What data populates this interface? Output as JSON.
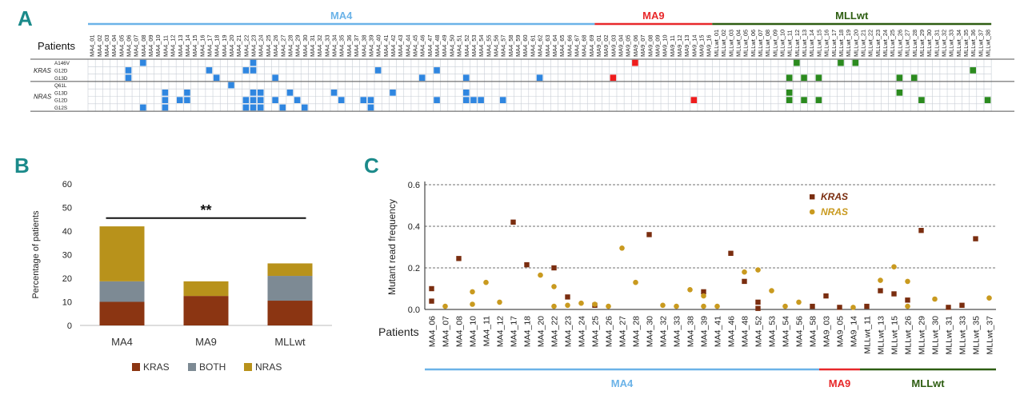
{
  "colors": {
    "ma4": "#6bb3e8",
    "ma9": "#e8282a",
    "mllwt": "#2e5e12",
    "kras_bar": "#8b3512",
    "both_bar": "#7d8a94",
    "nras_bar": "#b8921b",
    "kras_dot": "#7a2d0f",
    "nras_dot": "#c99a1f",
    "heat_ma4": "#2f86e0",
    "heat_ma9": "#ee1c1c",
    "heat_mll": "#2b8a1e",
    "grid": "#c8ced6"
  },
  "panel_labels": [
    "A",
    "B",
    "C"
  ],
  "panel_a": {
    "groups": [
      {
        "name": "MA4",
        "start": 0,
        "end": 69
      },
      {
        "name": "MA9",
        "start": 69,
        "end": 85
      },
      {
        "name": "MLLwt",
        "start": 85,
        "end": 123
      }
    ],
    "patients_label": "Patients",
    "gene_labels": [
      {
        "name": "KRAS",
        "rows": [
          0,
          2
        ]
      },
      {
        "name": "NRAS",
        "rows": [
          3,
          6
        ]
      }
    ],
    "row_labels": [
      "A146V",
      "G12D",
      "G13D",
      "Q61L",
      "G13D",
      "G12D",
      "G12S"
    ],
    "patients": [
      "MA4_01",
      "MA4_02",
      "MA4_03",
      "MA4_04",
      "MA4_05",
      "MA4_06",
      "MA4_07",
      "MA4_08",
      "MA4_09",
      "MA4_10",
      "MA4_11",
      "MA4_12",
      "MA4_13",
      "MA4_14",
      "MA4_15",
      "MA4_16",
      "MA4_17",
      "MA4_18",
      "MA4_19",
      "MA4_20",
      "MA4_21",
      "MA4_22",
      "MA4_23",
      "MA4_24",
      "MA4_25",
      "MA4_26",
      "MA4_27",
      "MA4_28",
      "MA4_29",
      "MA4_30",
      "MA4_31",
      "MA4_32",
      "MA4_33",
      "MA4_34",
      "MA4_35",
      "MA4_36",
      "MA4_37",
      "MA4_38",
      "MA4_39",
      "MA4_40",
      "MA4_41",
      "MA4_42",
      "MA4_43",
      "MA4_44",
      "MA4_45",
      "MA4_46",
      "MA4_47",
      "MA4_48",
      "MA4_49",
      "MA4_50",
      "MA4_51",
      "MA4_52",
      "MA4_53",
      "MA4_54",
      "MA4_55",
      "MA4_56",
      "MA4_57",
      "MA4_58",
      "MA4_59",
      "MA4_60",
      "MA4_61",
      "MA4_62",
      "MA4_63",
      "MA4_64",
      "MA4_65",
      "MA4_66",
      "MA4_67",
      "MA4_68",
      "MA4_69",
      "MA9_01",
      "MA9_02",
      "MA9_03",
      "MA9_04",
      "MA9_05",
      "MA9_06",
      "MA9_07",
      "MA9_08",
      "MA9_09",
      "MA9_10",
      "MA9_11",
      "MA9_12",
      "MA9_13",
      "MA9_14",
      "MA9_15",
      "MA9_16",
      "MLLwt_01",
      "MLLwt_02",
      "MLLwt_03",
      "MLLwt_04",
      "MLLwt_05",
      "MLLwt_06",
      "MLLwt_07",
      "MLLwt_08",
      "MLLwt_09",
      "MLLwt_10",
      "MLLwt_11",
      "MLLwt_12",
      "MLLwt_13",
      "MLLwt_14",
      "MLLwt_15",
      "MLLwt_16",
      "MLLwt_17",
      "MLLwt_18",
      "MLLwt_19",
      "MLLwt_20",
      "MLLwt_21",
      "MLLwt_22",
      "MLLwt_23",
      "MLLwt_24",
      "MLLwt_25",
      "MLLwt_26",
      "MLLwt_27",
      "MLLwt_28",
      "MLLwt_29",
      "MLLwt_30",
      "MLLwt_31",
      "MLLwt_32",
      "MLLwt_33",
      "MLLwt_34",
      "MLLwt_35",
      "MLLwt_36",
      "MLLwt_37",
      "MLLwt_38"
    ],
    "cells": [
      [
        0,
        7
      ],
      [
        0,
        22
      ],
      [
        0,
        74
      ],
      [
        0,
        96
      ],
      [
        0,
        102
      ],
      [
        0,
        104
      ],
      [
        1,
        5
      ],
      [
        1,
        16
      ],
      [
        1,
        21
      ],
      [
        1,
        22
      ],
      [
        1,
        39
      ],
      [
        1,
        47
      ],
      [
        1,
        120
      ],
      [
        2,
        5
      ],
      [
        2,
        17
      ],
      [
        2,
        25
      ],
      [
        2,
        45
      ],
      [
        2,
        51
      ],
      [
        2,
        61
      ],
      [
        2,
        71
      ],
      [
        2,
        95
      ],
      [
        2,
        97
      ],
      [
        2,
        99
      ],
      [
        2,
        110
      ],
      [
        2,
        112
      ],
      [
        3,
        19
      ],
      [
        4,
        10
      ],
      [
        4,
        13
      ],
      [
        4,
        22
      ],
      [
        4,
        23
      ],
      [
        4,
        27
      ],
      [
        4,
        33
      ],
      [
        4,
        41
      ],
      [
        4,
        51
      ],
      [
        4,
        95
      ],
      [
        4,
        110
      ],
      [
        5,
        10
      ],
      [
        5,
        12
      ],
      [
        5,
        13
      ],
      [
        5,
        21
      ],
      [
        5,
        22
      ],
      [
        5,
        23
      ],
      [
        5,
        25
      ],
      [
        5,
        28
      ],
      [
        5,
        34
      ],
      [
        5,
        37
      ],
      [
        5,
        38
      ],
      [
        5,
        47
      ],
      [
        5,
        51
      ],
      [
        5,
        52
      ],
      [
        5,
        53
      ],
      [
        5,
        56
      ],
      [
        5,
        82
      ],
      [
        5,
        95
      ],
      [
        5,
        97
      ],
      [
        5,
        99
      ],
      [
        5,
        113
      ],
      [
        5,
        122
      ],
      [
        6,
        7
      ],
      [
        6,
        10
      ],
      [
        6,
        21
      ],
      [
        6,
        22
      ],
      [
        6,
        23
      ],
      [
        6,
        26
      ],
      [
        6,
        29
      ],
      [
        6,
        38
      ]
    ]
  },
  "panel_b": {
    "chart_data": {
      "type": "bar",
      "stacked": true,
      "categories": [
        "MA4",
        "MA9",
        "MLLwt"
      ],
      "series": [
        {
          "name": "KRAS",
          "values": [
            10,
            12.5,
            10.5
          ]
        },
        {
          "name": "BOTH",
          "values": [
            8.7,
            0,
            10.5
          ]
        },
        {
          "name": "NRAS",
          "values": [
            23.3,
            6.2,
            5.3
          ]
        }
      ],
      "ylabel": "Percentage of patients",
      "ylim": [
        0,
        60
      ],
      "yticks": [
        "0",
        "10",
        "20",
        "30",
        "40",
        "50",
        "60"
      ],
      "significance": "**",
      "significance_from": "MA4",
      "significance_to": "MLLwt",
      "legend": [
        "KRAS",
        "BOTH",
        "NRAS"
      ]
    }
  },
  "panel_c": {
    "chart_data": {
      "type": "scatter",
      "ylabel": "Mutant read frequency",
      "xlabel": "Patients",
      "ylim": [
        0,
        0.6
      ],
      "yticks": [
        "0.0",
        "0.2",
        "0.4",
        "0.6"
      ],
      "categories": [
        "MA4_06",
        "MA4_07",
        "MA4_08",
        "MA4_10",
        "MA4_11",
        "MA4_12",
        "MA4_17",
        "MA4_18",
        "MA4_20",
        "MA4_22",
        "MA4_23",
        "MA4_24",
        "MA4_25",
        "MA4_26",
        "MA4_27",
        "MA4_28",
        "MA4_30",
        "MA4_32",
        "MA4_33",
        "MA4_38",
        "MA4_39",
        "MA4_41",
        "MA4_46",
        "MA4_48",
        "MA4_52",
        "MA4_53",
        "MA4_54",
        "MA4_56",
        "MA4_58",
        "MA9_03",
        "MA9_05",
        "MA9_14",
        "MLLwt_11",
        "MLLwt_13",
        "MLLwt_15",
        "MLLwt_26",
        "MLLwt_29",
        "MLLwt_30",
        "MLLwt_31",
        "MLLwt_33",
        "MLLwt_35",
        "MLLwt_37"
      ],
      "series": [
        {
          "name": "KRAS",
          "points": [
            [
              "MA4_06",
              0.1
            ],
            [
              "MA4_06",
              0.04
            ],
            [
              "MA4_08",
              0.245
            ],
            [
              "MA4_17",
              0.42
            ],
            [
              "MA4_18",
              0.215
            ],
            [
              "MA4_22",
              0.2
            ],
            [
              "MA4_23",
              0.06
            ],
            [
              "MA4_25",
              0.02
            ],
            [
              "MA4_30",
              0.36
            ],
            [
              "MA4_39",
              0.085
            ],
            [
              "MA4_46",
              0.27
            ],
            [
              "MA4_48",
              0.135
            ],
            [
              "MA4_52",
              0.035
            ],
            [
              "MA4_52",
              0.005
            ],
            [
              "MA4_58",
              0.015
            ],
            [
              "MA9_03",
              0.065
            ],
            [
              "MA9_05",
              0.01
            ],
            [
              "MLLwt_11",
              0.015
            ],
            [
              "MLLwt_13",
              0.09
            ],
            [
              "MLLwt_15",
              0.075
            ],
            [
              "MLLwt_26",
              0.045
            ],
            [
              "MLLwt_29",
              0.38
            ],
            [
              "MLLwt_31",
              0.01
            ],
            [
              "MLLwt_33",
              0.02
            ],
            [
              "MLLwt_35",
              0.34
            ]
          ]
        },
        {
          "name": "NRAS",
          "points": [
            [
              "MA4_07",
              0.015
            ],
            [
              "MA4_10",
              0.085
            ],
            [
              "MA4_10",
              0.025
            ],
            [
              "MA4_11",
              0.13
            ],
            [
              "MA4_12",
              0.035
            ],
            [
              "MA4_20",
              0.165
            ],
            [
              "MA4_22",
              0.11
            ],
            [
              "MA4_22",
              0.015
            ],
            [
              "MA4_23",
              0.02
            ],
            [
              "MA4_24",
              0.03
            ],
            [
              "MA4_25",
              0.025
            ],
            [
              "MA4_26",
              0.015
            ],
            [
              "MA4_27",
              0.295
            ],
            [
              "MA4_28",
              0.13
            ],
            [
              "MA4_32",
              0.02
            ],
            [
              "MA4_33",
              0.015
            ],
            [
              "MA4_38",
              0.095
            ],
            [
              "MA4_39",
              0.065
            ],
            [
              "MA4_39",
              0.015
            ],
            [
              "MA4_41",
              0.015
            ],
            [
              "MA4_48",
              0.18
            ],
            [
              "MA4_52",
              0.19
            ],
            [
              "MA4_53",
              0.09
            ],
            [
              "MA4_54",
              0.015
            ],
            [
              "MA4_56",
              0.035
            ],
            [
              "MA9_14",
              0.01
            ],
            [
              "MLLwt_13",
              0.14
            ],
            [
              "MLLwt_15",
              0.205
            ],
            [
              "MLLwt_26",
              0.135
            ],
            [
              "MLLwt_26",
              0.015
            ],
            [
              "MLLwt_30",
              0.05
            ],
            [
              "MLLwt_37",
              0.055
            ]
          ]
        }
      ],
      "legend": [
        "KRAS",
        "NRAS"
      ],
      "groups": [
        {
          "name": "MA4",
          "start": 0,
          "end": 29
        },
        {
          "name": "MA9",
          "start": 29,
          "end": 32
        },
        {
          "name": "MLLwt",
          "start": 32,
          "end": 42
        }
      ]
    }
  }
}
